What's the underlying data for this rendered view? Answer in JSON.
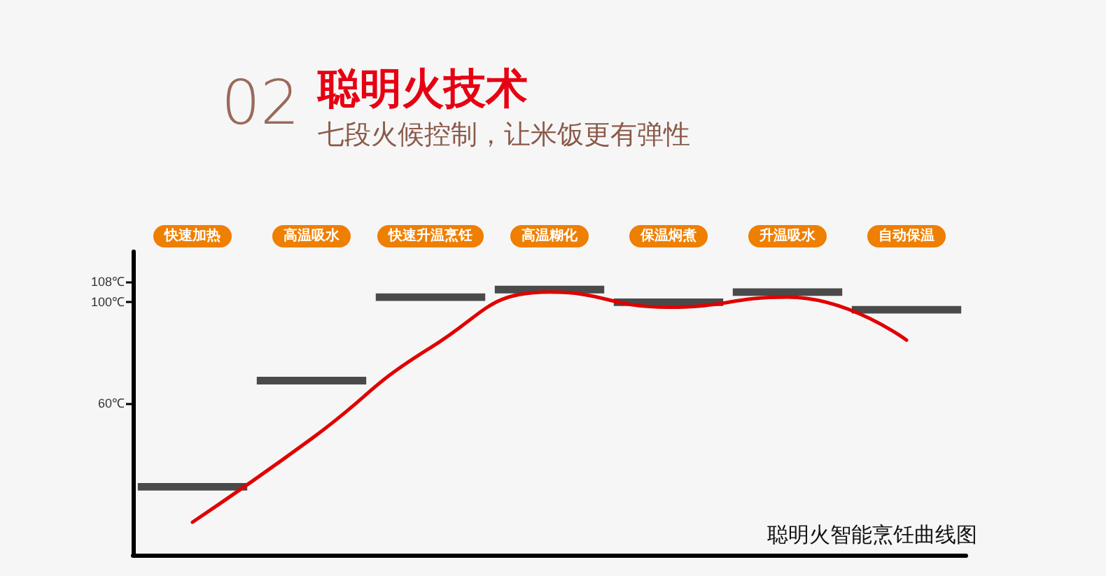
{
  "chart_data": {
    "type": "line",
    "title": "聪明火技术",
    "subtitle": "七段火候控制，让米饭更有弹性",
    "annotations": [
      "02",
      "聪明火智能烹饪曲线图"
    ],
    "categories": [
      "快速加热",
      "高温吸水",
      "快速升温烹饪",
      "高温糊化",
      "保温焖煮",
      "升温吸水",
      "自动保温"
    ],
    "series": [
      {
        "type": "bar",
        "color": "#4a4a4a",
        "base": [
          25.5,
          67.5,
          100.5,
          103.5,
          98.5,
          102.5,
          95.5
        ],
        "values": [
          3,
          3,
          3,
          3,
          3,
          3,
          3
        ]
      },
      {
        "type": "line",
        "marker": "none",
        "line_style": "solid",
        "color": "#e00000",
        "values": [
          13,
          46,
          82,
          104,
          98,
          102,
          85
        ]
      }
    ],
    "ylim": [
      0,
      120
    ],
    "yticks": [
      {
        "value": 60,
        "label": "60℃"
      },
      {
        "value": 100,
        "label": "100℃"
      },
      {
        "value": 108,
        "label": "108℃"
      }
    ],
    "grid": false
  }
}
